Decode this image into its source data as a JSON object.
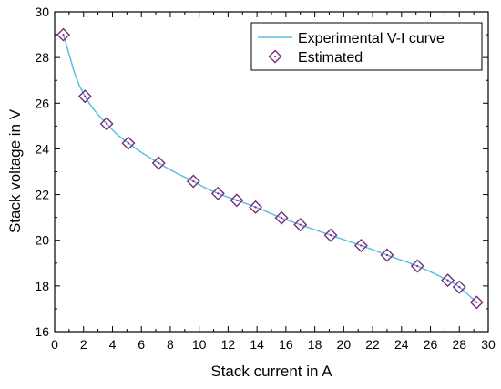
{
  "chart_data": {
    "type": "scatter",
    "xlabel": "Stack current in A",
    "ylabel": "Stack voltage in V",
    "xlim": [
      0,
      30
    ],
    "ylim": [
      16,
      30
    ],
    "x_ticks": [
      0,
      2,
      4,
      6,
      8,
      10,
      12,
      14,
      16,
      18,
      20,
      22,
      24,
      26,
      28,
      30
    ],
    "y_ticks": [
      16,
      18,
      20,
      22,
      24,
      26,
      28,
      30
    ],
    "grid": false,
    "legend_position": "top-right",
    "series": [
      {
        "name": "Experimental V-I curve",
        "kind": "line",
        "color": "#5bbfe0",
        "x": [
          0.6,
          1.0,
          1.5,
          2.1,
          2.8,
          3.6,
          4.3,
          5.1,
          6.0,
          7.2,
          8.4,
          9.6,
          10.4,
          11.3,
          12.6,
          13.9,
          15.7,
          17.0,
          19.1,
          21.2,
          23.0,
          25.1,
          27.2,
          28.0,
          29.2
        ],
        "y": [
          29.0,
          28.15,
          27.1,
          26.3,
          25.65,
          25.1,
          24.65,
          24.25,
          23.85,
          23.38,
          22.95,
          22.58,
          22.3,
          22.05,
          21.75,
          21.45,
          20.98,
          20.68,
          20.22,
          19.77,
          19.35,
          18.87,
          18.25,
          17.95,
          17.28
        ]
      },
      {
        "name": "Estimated",
        "kind": "marker",
        "marker": "diamond",
        "color": "#7b2d7a",
        "x": [
          0.6,
          2.1,
          3.6,
          5.1,
          7.2,
          9.6,
          11.3,
          12.6,
          13.9,
          15.7,
          17.0,
          19.1,
          21.2,
          23.0,
          25.1,
          27.2,
          28.0,
          29.2
        ],
        "y": [
          29.0,
          26.3,
          25.1,
          24.25,
          23.38,
          22.58,
          22.05,
          21.75,
          21.45,
          20.98,
          20.68,
          20.22,
          19.77,
          19.35,
          18.87,
          18.25,
          17.95,
          17.28
        ]
      }
    ]
  }
}
